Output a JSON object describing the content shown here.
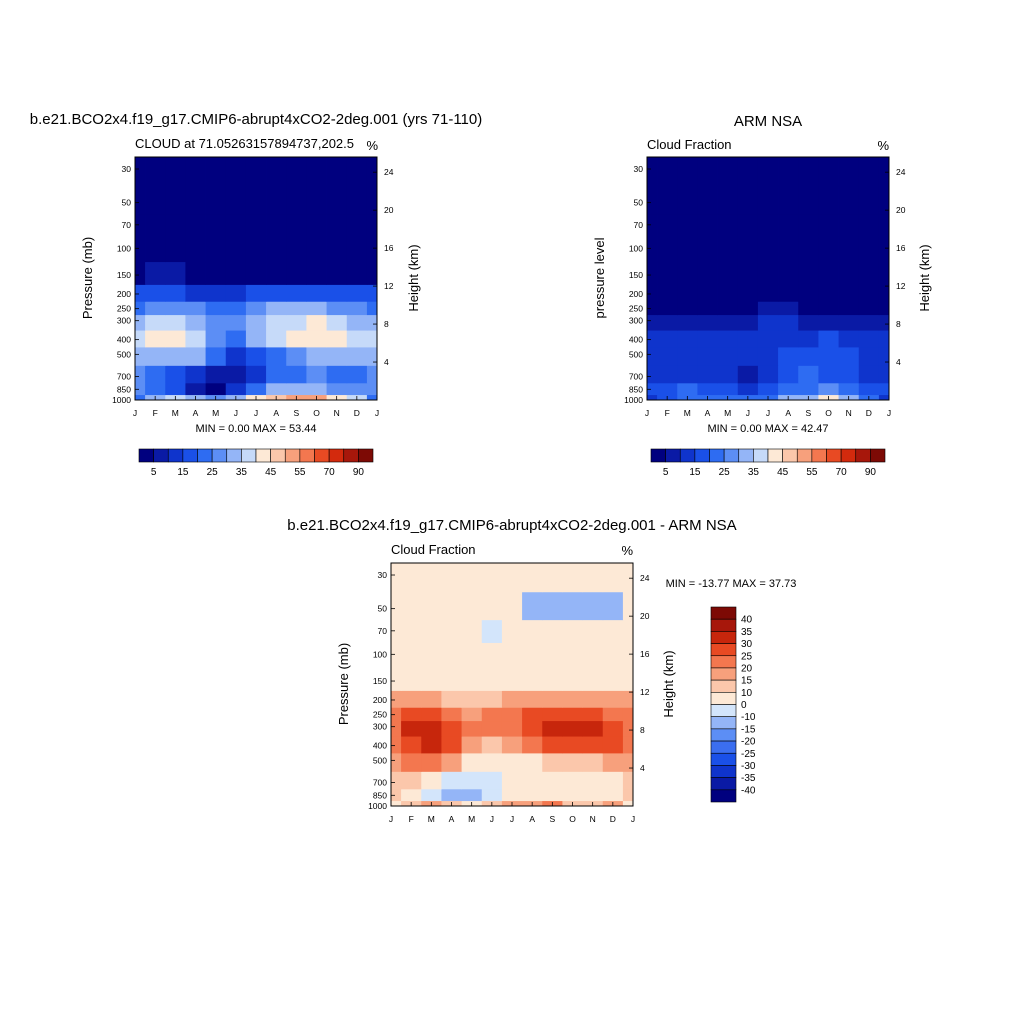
{
  "panels": [
    {
      "title": "b.e21.BCO2x4.f19_g17.CMIP6-abrupt4xCO2-2deg.001 (yrs 71-110)",
      "subtitle_left": "CLOUD at 71.05263157894737,202.5",
      "subtitle_right": "%",
      "ylabel_left": "Pressure (mb)",
      "ylabel_right": "Height (km)",
      "stats": "MIN =   0.00 MAX =  53.44"
    },
    {
      "title": "ARM NSA",
      "subtitle_left": "Cloud Fraction",
      "subtitle_right": "%",
      "ylabel_left": "pressure level",
      "ylabel_right": "Height (km)",
      "stats": "MIN =   0.00 MAX =  42.47"
    },
    {
      "title": "b.e21.BCO2x4.f19_g17.CMIP6-abrupt4xCO2-2deg.001 - ARM NSA",
      "subtitle_left": "Cloud Fraction",
      "subtitle_right": "%",
      "ylabel_left": "Pressure (mb)",
      "ylabel_right": "Height (km)",
      "stats": "MIN = -13.77 MAX =  37.73"
    }
  ],
  "chart_data": [
    {
      "type": "heatmap",
      "name": "model",
      "x_ticks": [
        "J",
        "F",
        "M",
        "A",
        "M",
        "J",
        "J",
        "A",
        "S",
        "O",
        "N",
        "D",
        "J"
      ],
      "pressure_ticks": [
        30,
        50,
        70,
        100,
        150,
        200,
        250,
        300,
        400,
        500,
        700,
        850,
        1000
      ],
      "height_ticks": [
        24,
        20,
        16,
        12,
        8,
        4
      ],
      "levels": [
        1000,
        850,
        700,
        500,
        400,
        300,
        250,
        200,
        150,
        100,
        70,
        50,
        30
      ],
      "months": [
        "Jan",
        "Feb",
        "Mar",
        "Apr",
        "May",
        "Jun",
        "Jul",
        "Aug",
        "Sep",
        "Oct",
        "Nov",
        "Dec",
        "Jan"
      ],
      "values": [
        [
          20,
          32,
          35,
          33,
          29,
          33,
          40,
          45,
          52,
          50,
          40,
          35,
          20
        ],
        [
          28,
          24,
          15,
          6,
          4,
          12,
          22,
          30,
          33,
          33,
          28,
          26,
          28
        ],
        [
          25,
          22,
          16,
          10,
          5,
          5,
          12,
          20,
          24,
          25,
          22,
          22,
          25
        ],
        [
          30,
          32,
          33,
          30,
          20,
          14,
          18,
          24,
          28,
          30,
          30,
          30,
          30
        ],
        [
          36,
          40,
          42,
          37,
          28,
          24,
          30,
          36,
          40,
          42,
          41,
          38,
          36
        ],
        [
          30,
          36,
          38,
          34,
          28,
          28,
          34,
          36,
          38,
          40,
          38,
          34,
          30
        ],
        [
          24,
          28,
          28,
          26,
          22,
          24,
          28,
          30,
          30,
          30,
          28,
          26,
          24
        ],
        [
          15,
          17,
          16,
          14,
          12,
          13,
          16,
          18,
          18,
          18,
          17,
          16,
          15
        ],
        [
          3,
          5,
          5,
          3,
          2,
          2,
          3,
          3,
          3,
          3,
          3,
          2,
          3
        ],
        [
          1,
          1,
          1,
          1,
          1,
          1,
          1,
          1,
          1,
          1,
          1,
          1,
          1
        ],
        [
          0,
          0,
          0,
          0,
          0,
          0,
          0,
          0,
          0,
          0,
          0,
          0,
          0
        ],
        [
          0,
          0,
          0,
          0,
          0,
          0,
          0,
          0,
          0,
          0,
          0,
          0,
          0
        ],
        [
          0,
          0,
          0,
          0,
          0,
          0,
          0,
          0,
          0,
          0,
          0,
          0,
          0
        ]
      ],
      "colorbar_labels": [
        "5",
        "15",
        "25",
        "35",
        "45",
        "55",
        "70",
        "90"
      ],
      "contour_levels": [
        5,
        10,
        15,
        20,
        25,
        30,
        35,
        40,
        45,
        50,
        55,
        60,
        70,
        80,
        90
      ],
      "colors": [
        "#00007f",
        "#0a1aa5",
        "#0f34cc",
        "#1a50e8",
        "#2e6cf2",
        "#5c8ef5",
        "#94b5f7",
        "#c6daf9",
        "#fde9d6",
        "#fbc7ab",
        "#f7a07c",
        "#f3774f",
        "#e84a23",
        "#d32a0d",
        "#a7170b",
        "#7d0a05"
      ]
    },
    {
      "type": "heatmap",
      "name": "obs",
      "x_ticks": [
        "J",
        "F",
        "M",
        "A",
        "M",
        "J",
        "J",
        "A",
        "S",
        "O",
        "N",
        "D",
        "J"
      ],
      "pressure_ticks": [
        30,
        50,
        70,
        100,
        150,
        200,
        250,
        300,
        400,
        500,
        700,
        850,
        1000
      ],
      "height_ticks": [
        24,
        20,
        16,
        12,
        8,
        4
      ],
      "levels": [
        1000,
        850,
        700,
        500,
        400,
        300,
        250,
        200,
        150,
        100,
        70,
        50,
        30
      ],
      "months": [
        "Jan",
        "Feb",
        "Mar",
        "Apr",
        "May",
        "Jun",
        "Jul",
        "Aug",
        "Sep",
        "Oct",
        "Nov",
        "Dec",
        "Jan"
      ],
      "values": [
        [
          14,
          18,
          20,
          22,
          22,
          20,
          24,
          30,
          32,
          40,
          30,
          20,
          14
        ],
        [
          16,
          18,
          20,
          18,
          16,
          14,
          16,
          22,
          24,
          26,
          22,
          18,
          16
        ],
        [
          14,
          10,
          12,
          14,
          10,
          8,
          12,
          18,
          20,
          18,
          16,
          14,
          14
        ],
        [
          14,
          12,
          12,
          14,
          12,
          12,
          14,
          16,
          16,
          18,
          16,
          14,
          14
        ],
        [
          12,
          12,
          12,
          12,
          12,
          12,
          14,
          14,
          14,
          16,
          14,
          12,
          12
        ],
        [
          6,
          6,
          6,
          6,
          8,
          8,
          10,
          10,
          8,
          8,
          6,
          6,
          6
        ],
        [
          2,
          2,
          2,
          3,
          4,
          4,
          5,
          5,
          4,
          3,
          2,
          2,
          2
        ],
        [
          0,
          0,
          0,
          0,
          0,
          0,
          0,
          0,
          0,
          0,
          0,
          0,
          0
        ],
        [
          0,
          0,
          0,
          0,
          0,
          0,
          0,
          0,
          0,
          0,
          0,
          0,
          0
        ],
        [
          0,
          0,
          0,
          0,
          0,
          0,
          0,
          0,
          0,
          0,
          0,
          0,
          0
        ],
        [
          0,
          0,
          0,
          0,
          0,
          0,
          0,
          0,
          0,
          0,
          0,
          0,
          0
        ],
        [
          0,
          0,
          0,
          0,
          0,
          0,
          0,
          0,
          0,
          0,
          0,
          0,
          0
        ],
        [
          0,
          0,
          0,
          0,
          0,
          0,
          0,
          0,
          0,
          0,
          0,
          0,
          0
        ]
      ],
      "colorbar_labels": [
        "5",
        "15",
        "25",
        "35",
        "45",
        "55",
        "70",
        "90"
      ],
      "contour_levels": [
        5,
        10,
        15,
        20,
        25,
        30,
        35,
        40,
        45,
        50,
        55,
        60,
        70,
        80,
        90
      ],
      "colors": [
        "#00007f",
        "#0a1aa5",
        "#0f34cc",
        "#1a50e8",
        "#2e6cf2",
        "#5c8ef5",
        "#94b5f7",
        "#c6daf9",
        "#fde9d6",
        "#fbc7ab",
        "#f7a07c",
        "#f3774f",
        "#e84a23",
        "#d32a0d",
        "#a7170b",
        "#7d0a05"
      ]
    },
    {
      "type": "heatmap",
      "name": "diff",
      "x_ticks": [
        "J",
        "F",
        "M",
        "A",
        "M",
        "J",
        "J",
        "A",
        "S",
        "O",
        "N",
        "D",
        "J"
      ],
      "pressure_ticks": [
        30,
        50,
        70,
        100,
        150,
        200,
        250,
        300,
        400,
        500,
        700,
        850,
        1000
      ],
      "height_ticks": [
        24,
        20,
        16,
        12,
        8,
        4
      ],
      "levels": [
        1000,
        850,
        700,
        500,
        400,
        300,
        250,
        200,
        150,
        100,
        70,
        50,
        30
      ],
      "months": [
        "Jan",
        "Feb",
        "Mar",
        "Apr",
        "May",
        "Jun",
        "Jul",
        "Aug",
        "Sep",
        "Oct",
        "Nov",
        "Dec",
        "Jan"
      ],
      "values": [
        [
          6,
          14,
          15,
          11,
          7,
          13,
          16,
          15,
          20,
          10,
          10,
          15,
          6
        ],
        [
          12,
          6,
          -5,
          -12,
          -12,
          -2,
          6,
          8,
          9,
          7,
          6,
          8,
          12
        ],
        [
          11,
          12,
          4,
          -4,
          -5,
          -3,
          0,
          2,
          4,
          7,
          6,
          8,
          11
        ],
        [
          16,
          20,
          21,
          16,
          8,
          2,
          4,
          8,
          12,
          12,
          14,
          16,
          16
        ],
        [
          24,
          28,
          30,
          25,
          16,
          12,
          16,
          22,
          26,
          26,
          27,
          26,
          24
        ],
        [
          24,
          30,
          32,
          28,
          20,
          20,
          24,
          26,
          30,
          32,
          32,
          28,
          24
        ],
        [
          22,
          26,
          26,
          23,
          18,
          20,
          23,
          25,
          26,
          27,
          26,
          24,
          22
        ],
        [
          15,
          17,
          16,
          14,
          12,
          13,
          16,
          18,
          18,
          18,
          17,
          16,
          15
        ],
        [
          3,
          5,
          5,
          3,
          2,
          2,
          3,
          3,
          3,
          3,
          3,
          2,
          3
        ],
        [
          1,
          1,
          1,
          1,
          1,
          1,
          1,
          1,
          1,
          1,
          1,
          1,
          1
        ],
        [
          0,
          0,
          0,
          0,
          0,
          -10,
          0,
          0,
          0,
          0,
          0,
          0,
          0
        ],
        [
          0,
          0,
          0,
          0,
          0,
          0,
          0,
          -12,
          -12,
          -12,
          -12,
          -12,
          0
        ],
        [
          0,
          0,
          0,
          0,
          0,
          0,
          0,
          0,
          0,
          0,
          0,
          0,
          0
        ]
      ],
      "colorbar_labels": [
        "40",
        "35",
        "30",
        "25",
        "20",
        "15",
        "10",
        "0",
        "-10",
        "-15",
        "-20",
        "-25",
        "-30",
        "-35",
        "-40"
      ],
      "contour_levels": [
        -40,
        -35,
        -30,
        -25,
        -20,
        -15,
        -10,
        0,
        10,
        15,
        20,
        25,
        30,
        35,
        40
      ],
      "colors": [
        "#00007f",
        "#0a1aa5",
        "#0f34cc",
        "#1a50e8",
        "#3b6ef0",
        "#5c8ef5",
        "#94b5f7",
        "#d3e5fb",
        "#fde9d6",
        "#fbc7ab",
        "#f7a07c",
        "#f3774f",
        "#e84a23",
        "#c7260c",
        "#a7170b",
        "#7d0a05"
      ]
    }
  ]
}
